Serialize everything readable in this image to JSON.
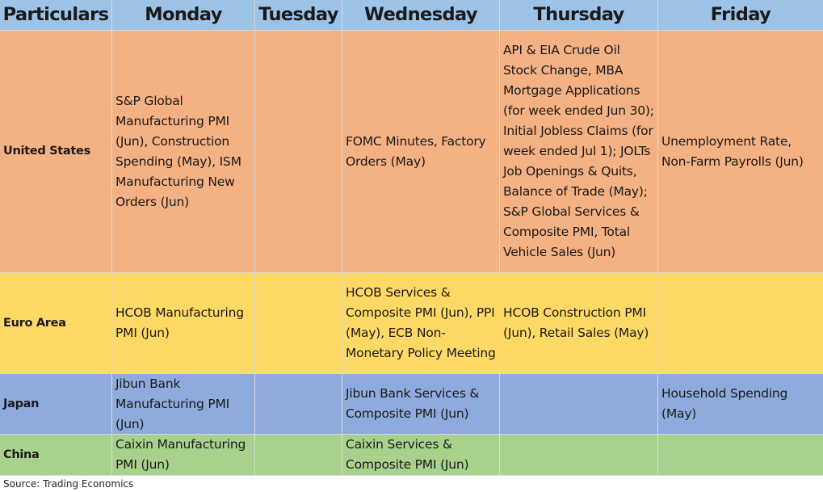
{
  "table": {
    "headers": [
      "Particulars",
      "Monday",
      "Tuesday",
      "Wednesday",
      "Thursday",
      "Friday"
    ],
    "rows": [
      {
        "label": "United States",
        "cells": [
          "S&P Global Manufacturing PMI (Jun), Construction Spending (May), ISM Manufacturing New Orders (Jun)",
          "",
          "FOMC Minutes, Factory Orders (May)",
          "API & EIA Crude Oil Stock Change, MBA Mortgage Applications (for week ended Jun 30); Initial Jobless Claims (for week ended Jul 1); JOLTs Job Openings & Quits, Balance of Trade (May); S&P Global Services & Composite PMI, Total Vehicle Sales (Jun)",
          "Unemployment Rate, Non-Farm Payrolls (Jun)"
        ]
      },
      {
        "label": "Euro Area",
        "cells": [
          "HCOB Manufacturing PMI (Jun)",
          "",
          "HCOB Services & Composite PMI (Jun), PPI (May), ECB Non-Monetary Policy Meeting",
          "HCOB Construction PMI (Jun), Retail Sales (May)",
          ""
        ]
      },
      {
        "label": "Japan",
        "cells": [
          "Jibun Bank Manufacturing PMI (Jun)",
          "",
          "Jibun Bank Services & Composite PMI (Jun)",
          "",
          "Household Spending (May)"
        ]
      },
      {
        "label": "China",
        "cells": [
          "Caixin Manufacturing PMI (Jun)",
          "",
          "Caixin Services & Composite PMI (Jun)",
          "",
          ""
        ]
      }
    ]
  },
  "source": "Source: Trading Economics",
  "colors": {
    "header": "#9dc3e6",
    "united_states": "#f4b183",
    "euro_area": "#ffd966",
    "japan": "#8faadc",
    "china": "#a9d18e"
  }
}
